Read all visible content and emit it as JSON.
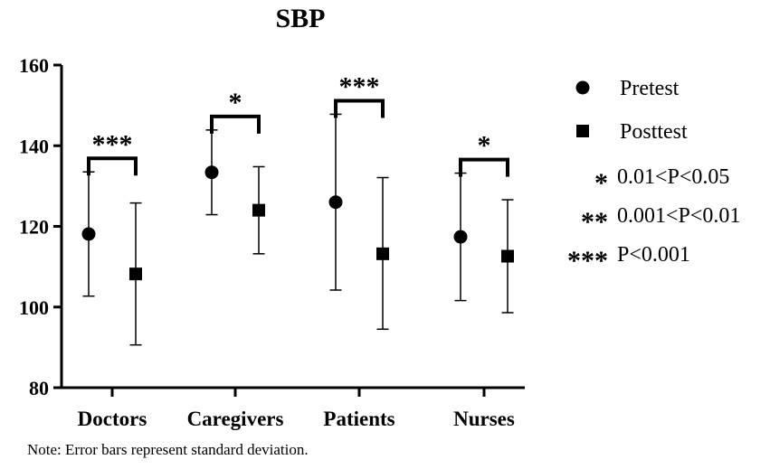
{
  "chart_data": {
    "type": "scatter",
    "title": "SBP",
    "categories": [
      "Doctors",
      "Caregivers",
      "Patients",
      "Nurses"
    ],
    "ylim": [
      80,
      160
    ],
    "yticks": [
      "80",
      "100",
      "120",
      "140",
      "160"
    ],
    "series": [
      {
        "name": "Pretest",
        "marker": "circle",
        "values": [
          118.1,
          133.4,
          126.0,
          117.4
        ],
        "lower": [
          102.7,
          122.9,
          104.2,
          101.6
        ],
        "upper": [
          133.5,
          143.9,
          147.8,
          133.2
        ]
      },
      {
        "name": "Posttest",
        "marker": "square",
        "values": [
          108.2,
          124.0,
          113.2,
          112.6
        ],
        "lower": [
          90.6,
          113.2,
          94.5,
          98.6
        ],
        "upper": [
          125.8,
          134.8,
          132.1,
          126.6
        ]
      }
    ],
    "significance": [
      "***",
      "*",
      "***",
      "*"
    ],
    "significance_legend": [
      {
        "symbol": "*",
        "label": "0.01<P<0.05"
      },
      {
        "symbol": "**",
        "label": "0.001<P<0.01"
      },
      {
        "symbol": "***",
        "label": "P<0.001"
      }
    ],
    "legend_position": "right",
    "grid": false
  },
  "note": "Note: Error bars represent standard deviation."
}
